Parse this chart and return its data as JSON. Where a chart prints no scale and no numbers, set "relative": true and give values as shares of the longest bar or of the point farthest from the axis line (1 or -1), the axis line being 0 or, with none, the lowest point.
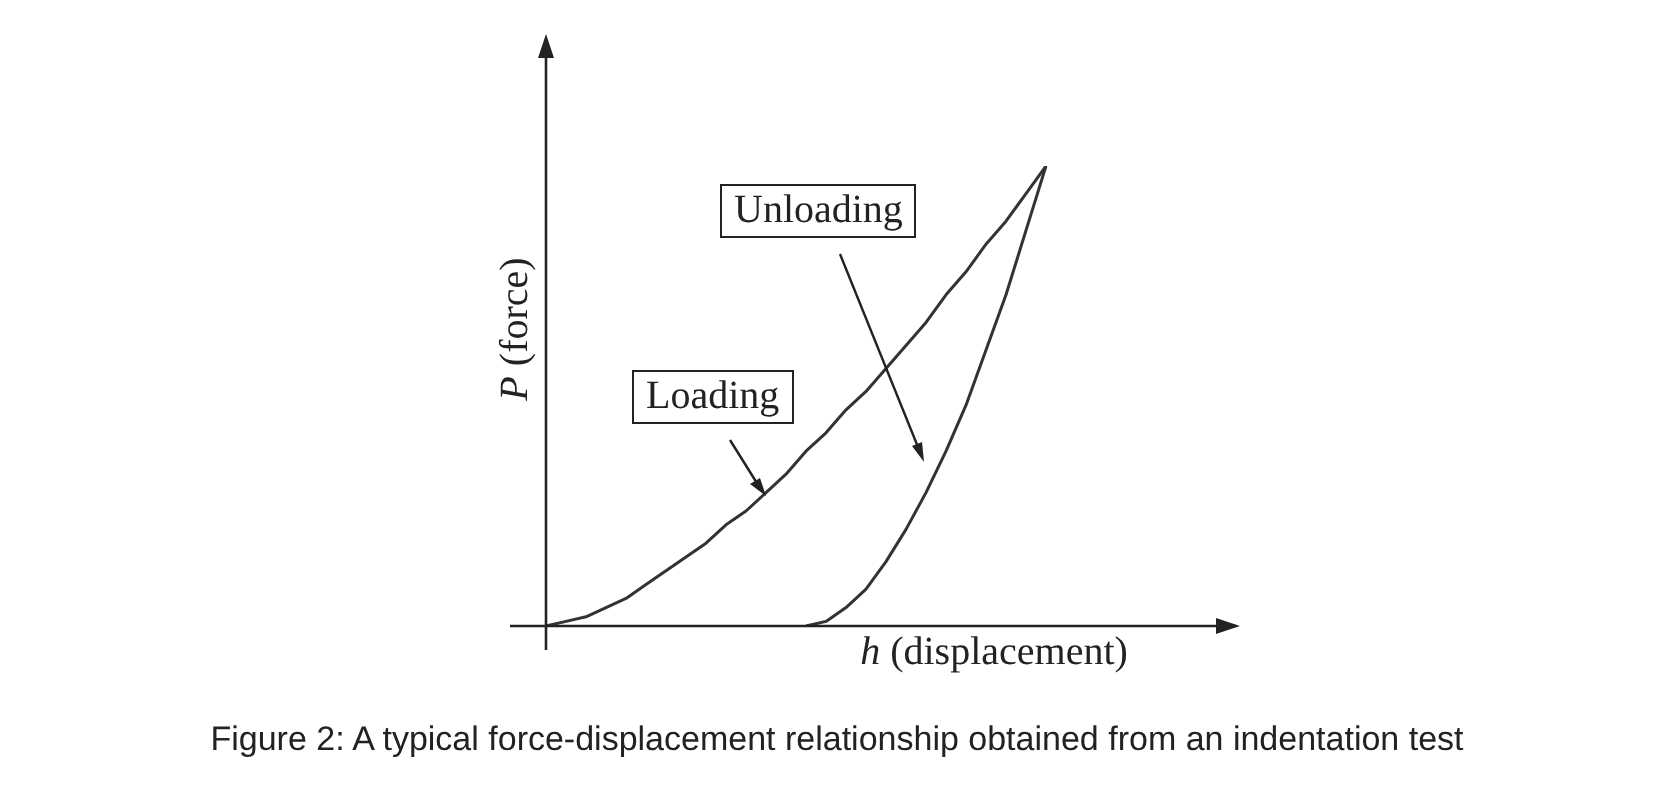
{
  "chart_data": {
    "type": "line",
    "relative": true,
    "xlabel": "h (displacement)",
    "ylabel": "P (force)",
    "marker": "none",
    "line_style": "solid",
    "categories": [
      null,
      null,
      null,
      null,
      null,
      null,
      null,
      null,
      null,
      null,
      null,
      null,
      null,
      null,
      null,
      null,
      null,
      null,
      null,
      null,
      null,
      null,
      null,
      null,
      null,
      null,
      null,
      null,
      null,
      null,
      null,
      null,
      null,
      null,
      null
    ],
    "series": [
      {
        "color": "#333333",
        "values": [
          0,
          0.01,
          0.02,
          0.04,
          0.06,
          0.09,
          0.12,
          0.15,
          0.18,
          0.22,
          0.25,
          0.29,
          0.33,
          0.38,
          0.42,
          0.47,
          0.51,
          0.56,
          0.61,
          0.66,
          0.72,
          0.77,
          0.83,
          0.88,
          0.94,
          1,
          null,
          null,
          null,
          null,
          null,
          null,
          null,
          null,
          null
        ]
      },
      {
        "color": "#333333",
        "values": [
          null,
          null,
          null,
          null,
          null,
          null,
          null,
          null,
          null,
          null,
          null,
          null,
          null,
          0,
          0.01,
          0.04,
          0.08,
          0.14,
          0.21,
          0.29,
          0.38,
          0.48,
          0.6,
          0.72,
          0.86,
          1,
          null,
          null,
          null,
          null,
          null,
          null,
          null,
          null,
          null
        ]
      }
    ],
    "annotations": [
      "Loading",
      "Unloading",
      "Figure 2: A typical force-displacement relationship obtained from an indentation test"
    ]
  }
}
